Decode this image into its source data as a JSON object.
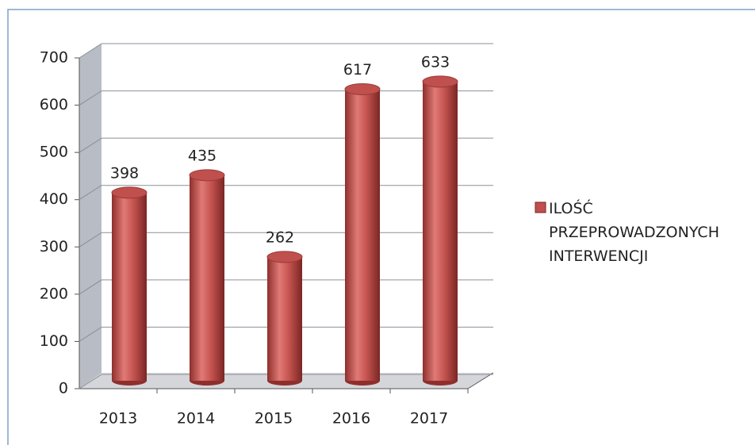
{
  "chart_data": {
    "type": "bar",
    "categories": [
      "2013",
      "2014",
      "2015",
      "2016",
      "2017"
    ],
    "series": [
      {
        "name": "ILOŚĆ PRZEPROWADZONYCH INTERWENCJI",
        "color": "#c0504d",
        "values": [
          398,
          435,
          262,
          617,
          633
        ]
      }
    ],
    "ylim": [
      0,
      700
    ],
    "yticks": [
      0,
      100,
      200,
      300,
      400,
      500,
      600,
      700
    ],
    "grid": true,
    "legend": "right"
  }
}
